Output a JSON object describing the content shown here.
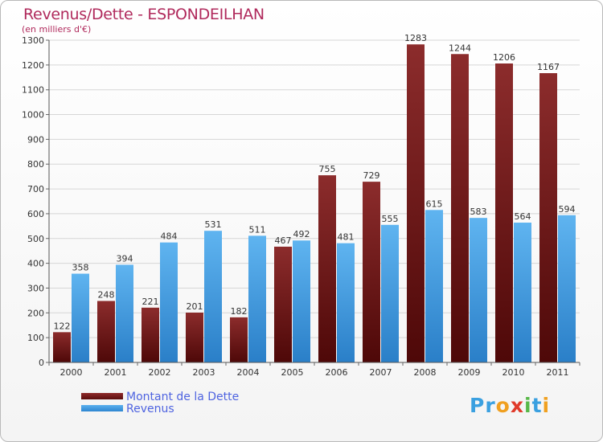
{
  "chart_data": {
    "type": "bar",
    "title": "Revenus/Dette - ESPONDEILHAN",
    "subtitle": "(en milliers d'€)",
    "categories": [
      "2000",
      "2001",
      "2002",
      "2003",
      "2004",
      "2005",
      "2006",
      "2007",
      "2008",
      "2009",
      "2010",
      "2011"
    ],
    "series": [
      {
        "name": "Montant de la Dette",
        "values": [
          122,
          248,
          221,
          201,
          182,
          467,
          755,
          729,
          1283,
          1244,
          1206,
          1167
        ],
        "color": "#7a1a1a"
      },
      {
        "name": "Revenus",
        "values": [
          358,
          394,
          484,
          531,
          511,
          492,
          481,
          555,
          615,
          583,
          564,
          594
        ],
        "color": "#4aa3e8"
      }
    ],
    "ylim": [
      0,
      1300
    ],
    "yticks": [
      0,
      100,
      200,
      300,
      400,
      500,
      600,
      700,
      800,
      900,
      1000,
      1100,
      1200,
      1300
    ],
    "grid": true,
    "legend": "bottom-left"
  },
  "logo": {
    "text": "Proxiti",
    "letters": [
      "P",
      "r",
      "o",
      "x",
      "i",
      "t",
      "i"
    ],
    "colors": [
      "#3aa0e0",
      "#3aa0e0",
      "#f0a020",
      "#e03a2a",
      "#58b848",
      "#3aa0e0",
      "#f0a020"
    ]
  }
}
